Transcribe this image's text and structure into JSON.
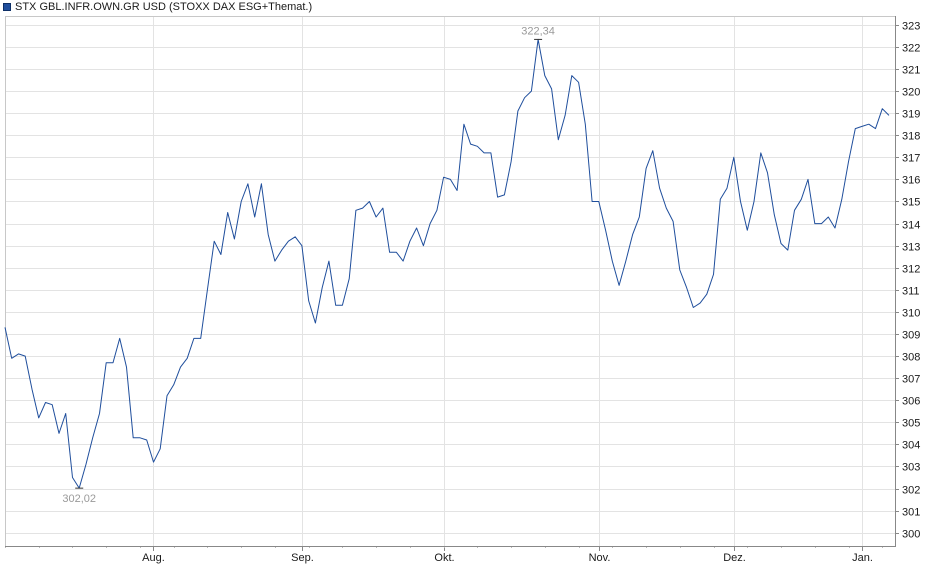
{
  "legend": {
    "label": "STX GBL.INFR.OWN.GR USD (STOXX DAX ESG+Themat.)",
    "color": "#1f4e9c"
  },
  "chart_data": {
    "type": "line",
    "ylim": [
      299.4,
      323.4
    ],
    "yticks": [
      300,
      301,
      302,
      303,
      304,
      305,
      306,
      307,
      308,
      309,
      310,
      311,
      312,
      313,
      314,
      315,
      316,
      317,
      318,
      319,
      320,
      321,
      322,
      323
    ],
    "xticks": [
      {
        "label": "Aug.",
        "index": 22
      },
      {
        "label": "Sep.",
        "index": 44
      },
      {
        "label": "Okt.",
        "index": 65
      },
      {
        "label": "Nov.",
        "index": 88
      },
      {
        "label": "Dez.",
        "index": 108
      },
      {
        "label": "Jan.",
        "index": 127
      }
    ],
    "grid": true,
    "series": [
      {
        "color": "#1f4e9c",
        "values": [
          309.3,
          307.9,
          308.1,
          308.0,
          306.5,
          305.2,
          305.9,
          305.8,
          304.5,
          305.4,
          302.5,
          302.02,
          303.1,
          304.3,
          305.4,
          307.7,
          307.7,
          308.8,
          307.5,
          304.3,
          304.3,
          304.2,
          303.2,
          303.8,
          306.2,
          306.7,
          307.5,
          307.9,
          308.8,
          308.8,
          311.0,
          313.2,
          312.6,
          314.5,
          313.3,
          315.0,
          315.8,
          314.3,
          315.8,
          313.5,
          312.3,
          312.8,
          313.2,
          313.4,
          313.0,
          310.5,
          309.5,
          311.1,
          312.3,
          310.3,
          310.3,
          311.5,
          314.6,
          314.7,
          315.0,
          314.3,
          314.7,
          312.7,
          312.7,
          312.3,
          313.2,
          313.8,
          313.0,
          314.0,
          314.6,
          316.1,
          316.0,
          315.5,
          318.5,
          317.6,
          317.5,
          317.2,
          317.2,
          315.2,
          315.3,
          316.8,
          319.1,
          319.7,
          320.0,
          322.34,
          320.7,
          320.1,
          317.8,
          318.9,
          320.7,
          320.4,
          318.5,
          315.0,
          315.0,
          313.7,
          312.3,
          311.2,
          312.3,
          313.5,
          314.3,
          316.5,
          317.3,
          315.6,
          314.7,
          314.1,
          311.9,
          311.1,
          310.2,
          310.4,
          310.8,
          311.7,
          315.1,
          315.6,
          317.0,
          315.0,
          313.7,
          315.0,
          317.2,
          316.3,
          314.4,
          313.1,
          312.8,
          314.6,
          315.1,
          316.0,
          314.0,
          314.0,
          314.3,
          313.8,
          315.1,
          316.8,
          318.3,
          318.4,
          318.5,
          318.3,
          319.2,
          318.9
        ]
      }
    ],
    "annotations": [
      {
        "label": "322,34",
        "index": 79,
        "value": 322.34,
        "position": "above"
      },
      {
        "label": "302,02",
        "index": 11,
        "value": 302.02,
        "position": "below"
      }
    ]
  }
}
